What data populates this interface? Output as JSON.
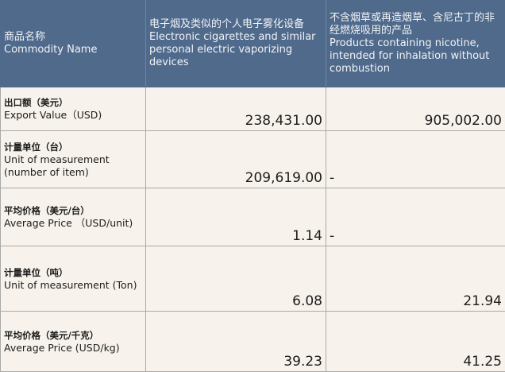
{
  "header": {
    "col1": {
      "zh": "商品名称",
      "en": "Commodity Name"
    },
    "col2": {
      "zh": "电子烟及类似的个人电子雾化设备",
      "en": "Electronic cigarettes and similar personal electric vaporizing devices"
    },
    "col3": {
      "zh": "不含烟草或再造烟草、含尼古丁的非经燃烧吸用的产品",
      "en": "Products containing nicotine, intended for inhalation without combustion"
    }
  },
  "rows": [
    {
      "zh": "出口额（美元）",
      "en": "Export Value（USD)",
      "col2": "238,431.00",
      "col3": "905,002.00"
    },
    {
      "zh": "计量单位（台）",
      "en": "Unit of measurement (number of item)",
      "col2": "209,619.00",
      "col3": "-"
    },
    {
      "zh": "平均价格（美元/台）",
      "en": "Average Price （USD/unit)",
      "col2": "1.14",
      "col3": "-"
    },
    {
      "zh": "计量单位（吨）",
      "en": "Unit of measurement (Ton)",
      "col2": "6.08",
      "col3": "21.94"
    },
    {
      "zh": "平均价格（美元/千克）",
      "en": "Average Price (USD/kg)",
      "col2": "39.23",
      "col3": "41.25"
    }
  ],
  "colors": {
    "header_bg": "#4f6a8b",
    "cell_bg": "#f7f3ec"
  }
}
